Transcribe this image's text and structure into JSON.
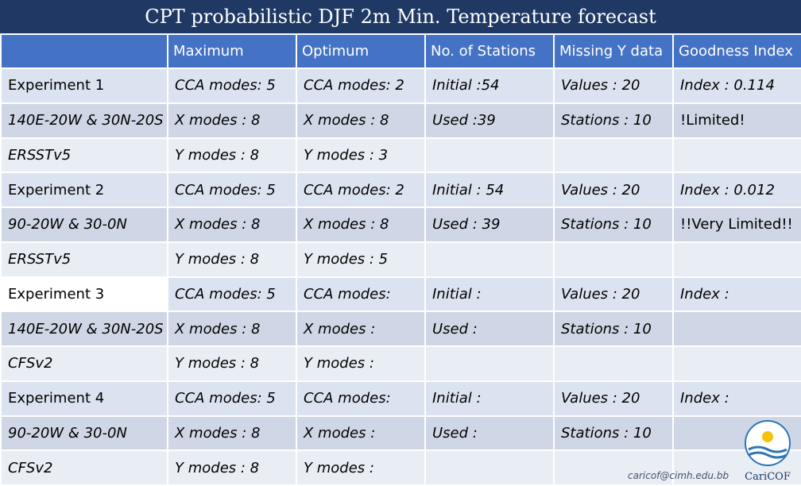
{
  "title": "CPT probabilistic DJF 2m Min. Temperature forecast",
  "headers": [
    "",
    "Maximum",
    "Optimum",
    "No. of Stations",
    "Missing Y data",
    "Goodness Index"
  ],
  "experiments": [
    {
      "rows": [
        [
          "Experiment 1",
          "CCA modes: 5",
          "CCA modes: 2",
          "Initial :54",
          "Values : 20",
          "Index : 0.114"
        ],
        [
          "140E-20W & 30N-20S",
          "X modes : 8",
          "X modes : 8",
          "Used :39",
          "Stations : 10",
          "!Limited!"
        ],
        [
          "ERSSTv5",
          "Y modes : 8",
          "Y modes : 3",
          "",
          "",
          ""
        ]
      ]
    },
    {
      "rows": [
        [
          "Experiment 2",
          "CCA modes: 5",
          "CCA modes: 2",
          "Initial : 54",
          "Values : 20",
          "Index : 0.012"
        ],
        [
          "90-20W & 30-0N",
          "X modes : 8",
          "X modes : 8",
          "Used : 39",
          "Stations : 10",
          "!!Very Limited!!"
        ],
        [
          "ERSSTv5",
          "Y modes : 8",
          "Y modes : 5",
          "",
          "",
          ""
        ]
      ]
    },
    {
      "rows": [
        [
          "Experiment 3",
          "CCA modes: 5",
          "CCA modes:",
          "Initial :",
          "Values : 20",
          "Index :"
        ],
        [
          "140E-20W & 30N-20S",
          "X modes : 8",
          "X modes :",
          "Used :",
          "Stations : 10",
          ""
        ],
        [
          "CFSv2",
          "Y modes : 8",
          "Y modes :",
          "",
          "",
          ""
        ]
      ]
    },
    {
      "rows": [
        [
          "Experiment 4",
          "CCA modes: 5",
          "CCA modes:",
          "Initial :",
          "Values : 20",
          "Index :"
        ],
        [
          "90-20W & 30-0N",
          "X modes : 8",
          "X modes :",
          "Used :",
          "Stations : 10",
          ""
        ],
        [
          "CFSv2",
          "Y modes : 8",
          "Y modes :",
          "",
          "",
          ""
        ]
      ]
    }
  ],
  "footer_email": "caricof@cimh.edu.bb",
  "logo_text": "CariCOF",
  "colors": {
    "header": "#4472c4",
    "title_bar": "#1f3864",
    "row_dark": "#cfd6e5",
    "row_light": "#e9edf4",
    "warning": "#ff0000"
  }
}
